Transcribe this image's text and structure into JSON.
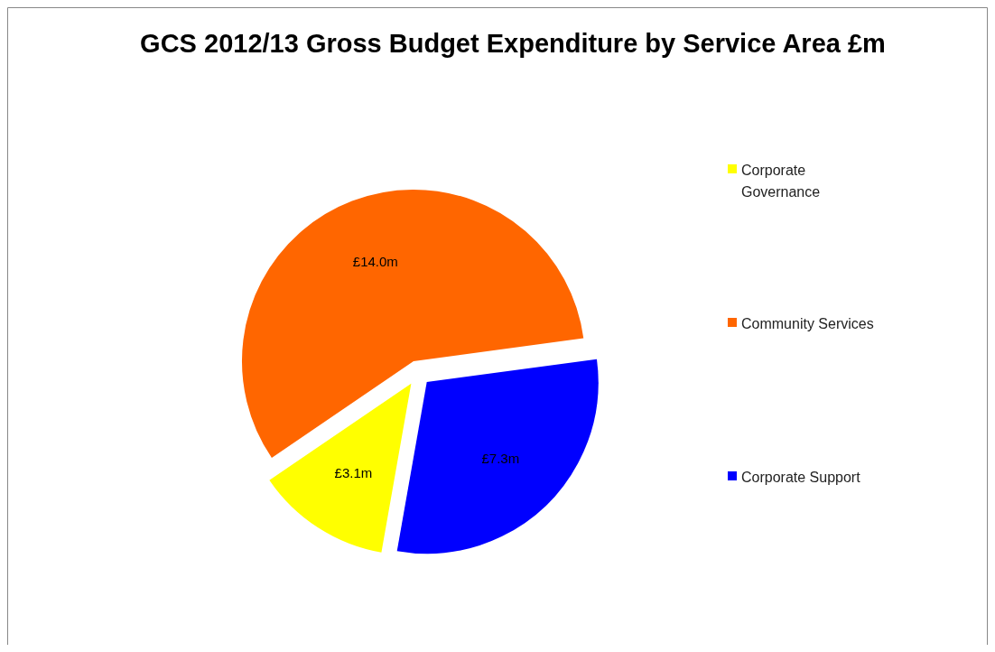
{
  "chart_data": {
    "type": "pie",
    "title": "GCS 2012/13 Gross Budget Expenditure by Service Area £m",
    "categories": [
      "Corporate Governance",
      "Community Services",
      "Corporate Support"
    ],
    "values": [
      3.1,
      14.0,
      7.3
    ],
    "value_labels": [
      "£3.1m",
      "£14.0m",
      "£7.3m"
    ],
    "colors": [
      "#ffff00",
      "#ff6600",
      "#0000ff"
    ],
    "legend": "right"
  }
}
